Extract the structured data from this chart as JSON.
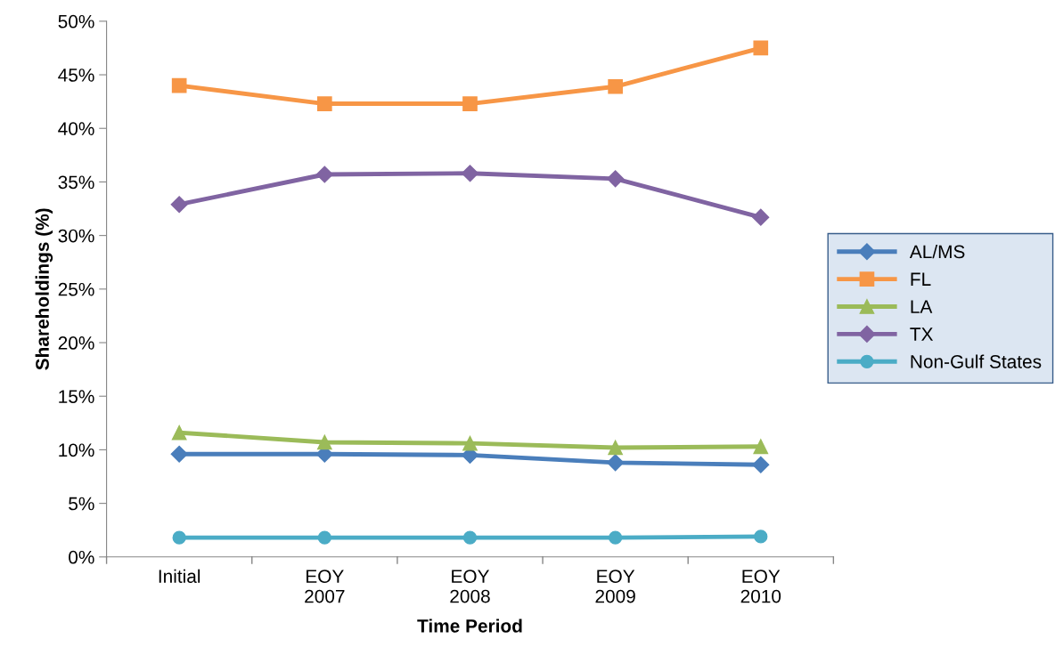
{
  "chart_data": {
    "type": "line",
    "xlabel": "Time Period",
    "ylabel": "Shareholdings (%)",
    "categories": [
      "Initial",
      "EOY\n2007",
      "EOY\n2008",
      "EOY\n2009",
      "EOY\n2010"
    ],
    "series": [
      {
        "name": "AL/MS",
        "color": "#4a7ebb",
        "marker": "diamond",
        "values": [
          9.6,
          9.6,
          9.5,
          8.8,
          8.6
        ]
      },
      {
        "name": "FL",
        "color": "#f79646",
        "marker": "square",
        "values": [
          44.0,
          42.3,
          42.3,
          43.9,
          47.5
        ]
      },
      {
        "name": "LA",
        "color": "#9bbb59",
        "marker": "triangle",
        "values": [
          11.6,
          10.7,
          10.6,
          10.2,
          10.3
        ]
      },
      {
        "name": "TX",
        "color": "#8064a2",
        "marker": "diamond",
        "values": [
          32.9,
          35.7,
          35.8,
          35.3,
          31.7
        ]
      },
      {
        "name": "Non-Gulf States",
        "color": "#4bacc6",
        "marker": "circle",
        "values": [
          1.8,
          1.8,
          1.8,
          1.8,
          1.9
        ]
      }
    ],
    "ylim": [
      0,
      50
    ],
    "yticks": [
      {
        "value": 0,
        "label": "0%"
      },
      {
        "value": 5,
        "label": "5%"
      },
      {
        "value": 10,
        "label": "10%"
      },
      {
        "value": 15,
        "label": "15%"
      },
      {
        "value": 20,
        "label": "20%"
      },
      {
        "value": 25,
        "label": "25%"
      },
      {
        "value": 30,
        "label": "30%"
      },
      {
        "value": 35,
        "label": "35%"
      },
      {
        "value": 40,
        "label": "40%"
      },
      {
        "value": 45,
        "label": "45%"
      },
      {
        "value": 50,
        "label": "50%"
      }
    ],
    "grid": false,
    "legend": "right",
    "line_style": "solid"
  }
}
